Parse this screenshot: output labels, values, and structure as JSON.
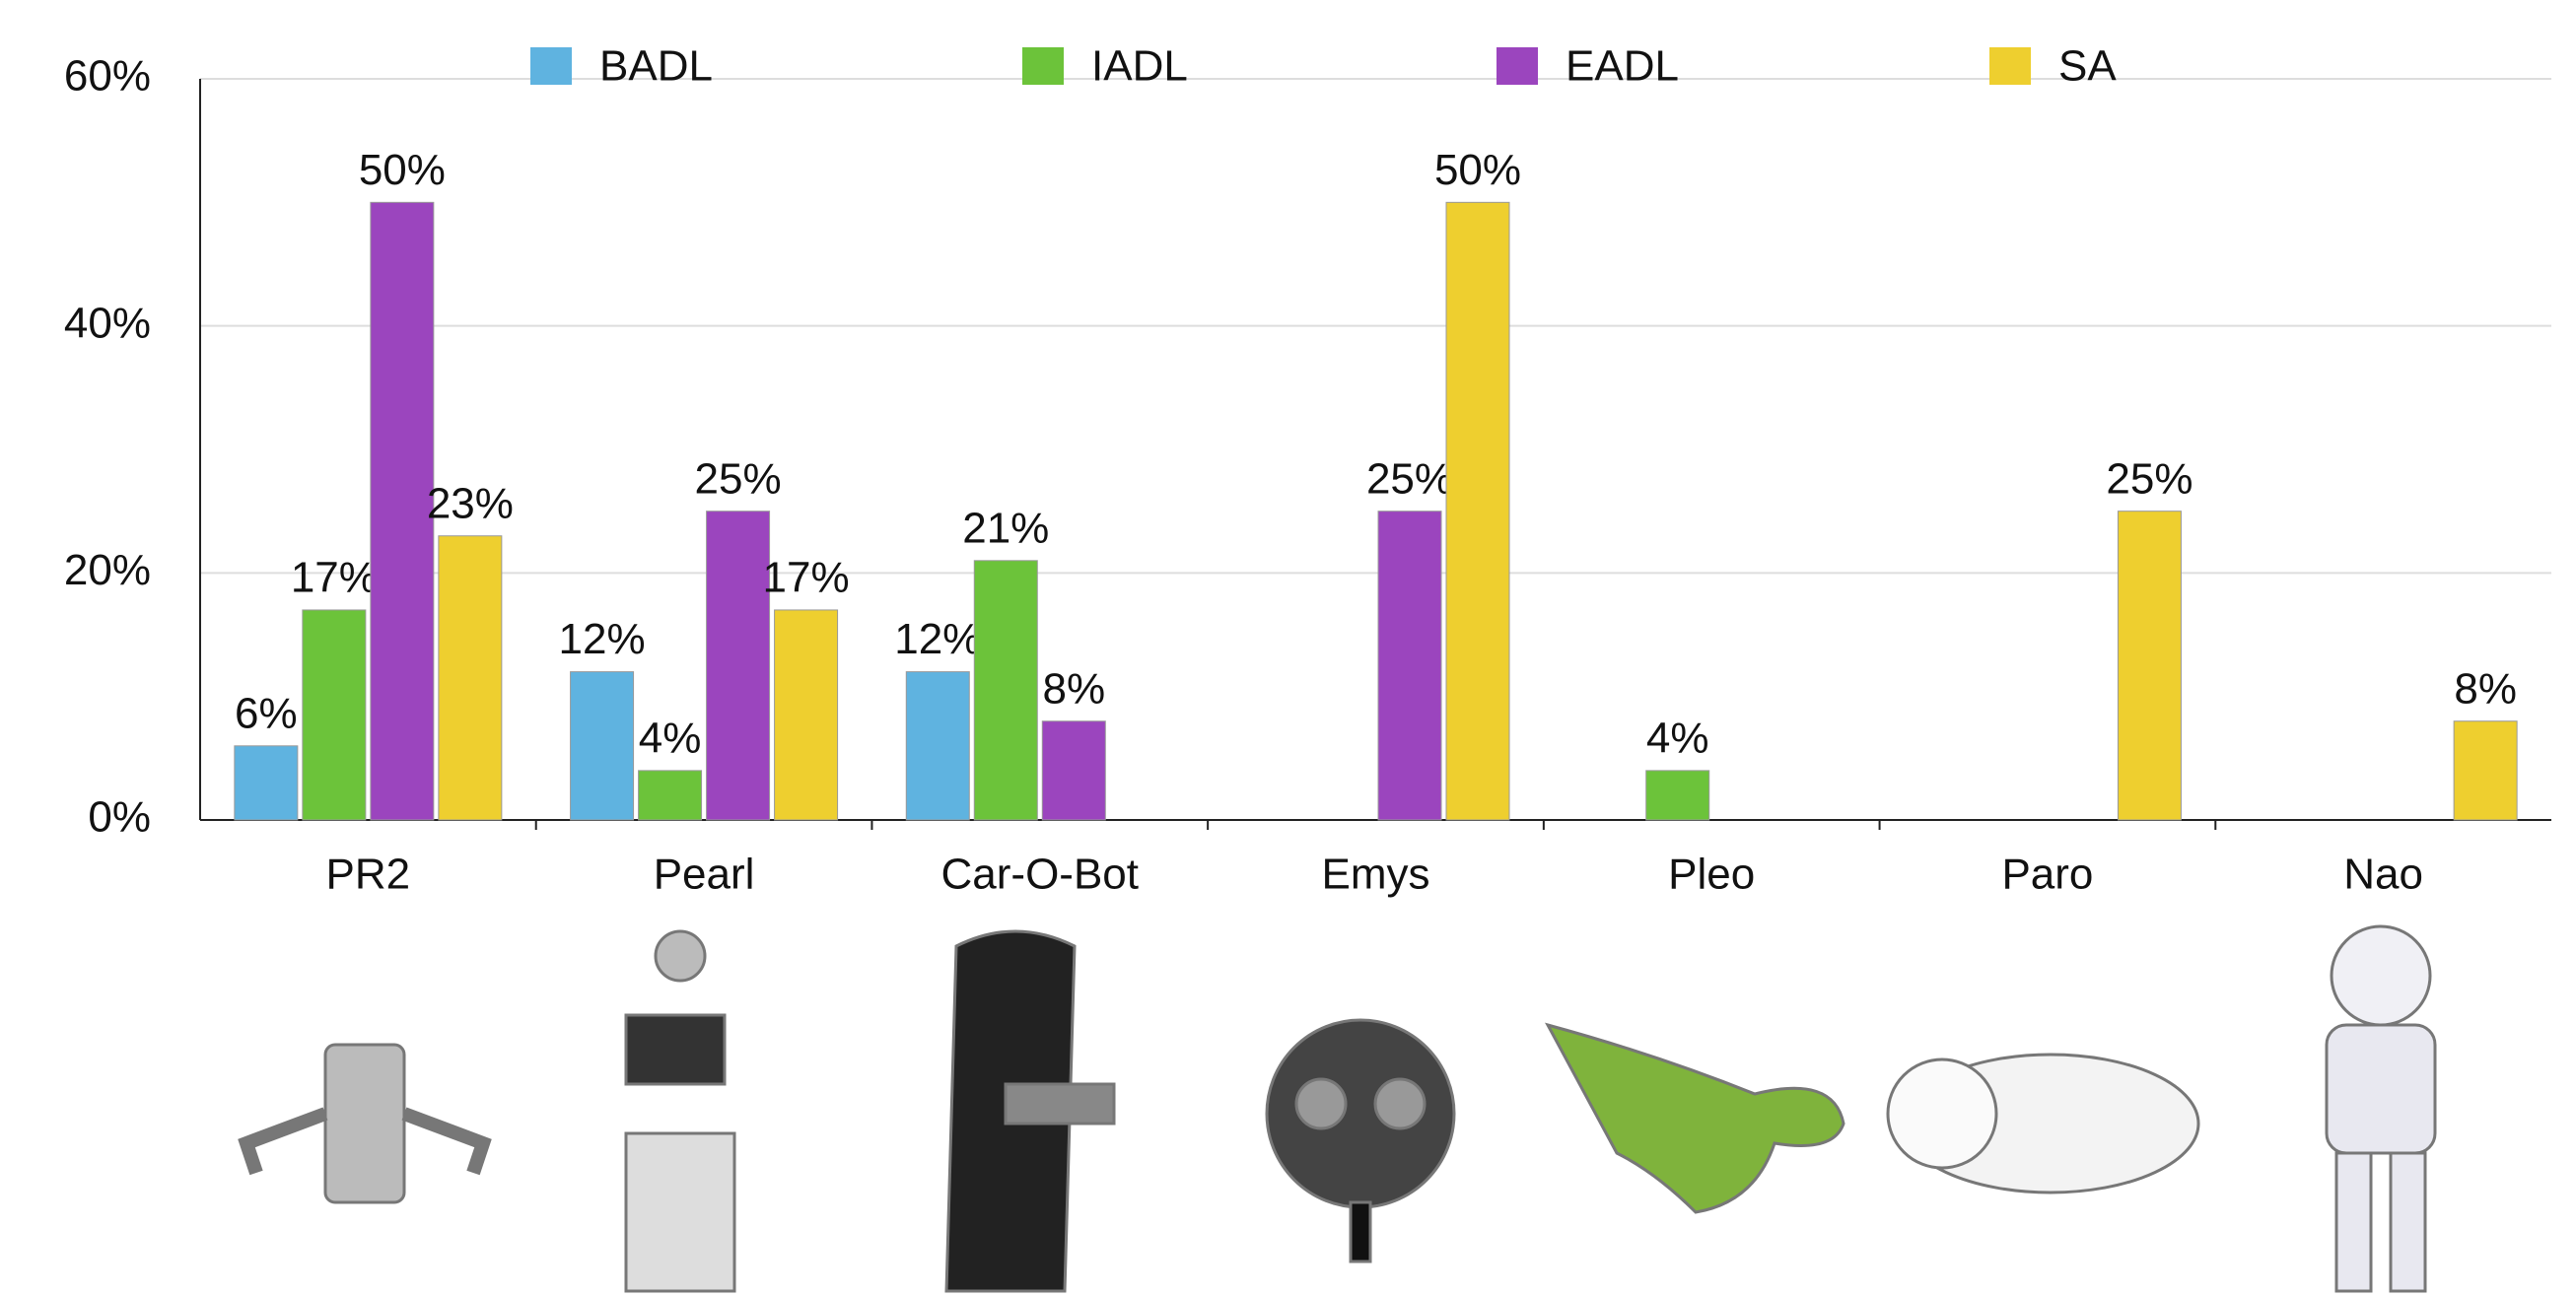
{
  "chart_data": {
    "type": "bar",
    "categories": [
      "PR2",
      "Pearl",
      "Car-O-Bot",
      "Emys",
      "Pleo",
      "Paro",
      "Nao"
    ],
    "series": [
      {
        "name": "BADL",
        "color": "#5fb3e0",
        "values": [
          6,
          12,
          12,
          null,
          null,
          null,
          null
        ],
        "value_labels": [
          "6%",
          "12%",
          "12%",
          null,
          null,
          null,
          null
        ]
      },
      {
        "name": "IADL",
        "color": "#6cc33a",
        "values": [
          17,
          4,
          21,
          null,
          4,
          null,
          null
        ],
        "value_labels": [
          "17%",
          "4%",
          "21%",
          null,
          "4%",
          null,
          null
        ]
      },
      {
        "name": "EADL",
        "color": "#9b45be",
        "values": [
          50,
          25,
          8,
          25,
          null,
          null,
          null
        ],
        "value_labels": [
          "50%",
          "25%",
          "8%",
          "25%",
          null,
          null,
          null
        ]
      },
      {
        "name": "SA",
        "color": "#eecf2f",
        "values": [
          23,
          17,
          null,
          50,
          null,
          25,
          8
        ],
        "value_labels": [
          "23%",
          "17%",
          null,
          "50%",
          null,
          "25%",
          "8%"
        ]
      }
    ],
    "ylim": [
      0,
      60
    ],
    "yticks": [
      {
        "value": 0,
        "label": "0%"
      },
      {
        "value": 20,
        "label": "20%"
      },
      {
        "value": 40,
        "label": "40%"
      },
      {
        "value": 60,
        "label": "60%"
      }
    ],
    "grid": true,
    "legend": "top"
  }
}
